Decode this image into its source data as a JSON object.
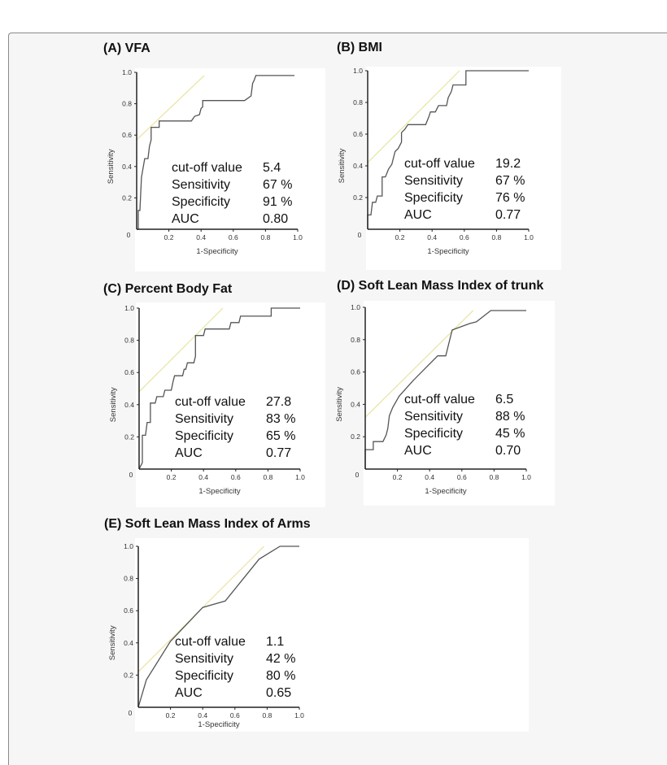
{
  "colors": {
    "roc_line": "#555555",
    "tangent_line": "#e8e4a0",
    "axis": "#222222"
  },
  "chart_data": [
    {
      "type": "line",
      "title": "(A) VFA",
      "xlabel": "1-Specificity",
      "ylabel": "Sensitivity",
      "xlim": [
        0,
        1
      ],
      "ylim": [
        0,
        1
      ],
      "xticks": [
        "0.2",
        "0.4",
        "0.6",
        "0.8",
        "1.0"
      ],
      "yticks": [
        "0.2",
        "0.4",
        "0.6",
        "0.8",
        "1.0"
      ],
      "origin_label": "0",
      "grid": false,
      "roc": {
        "x": [
          0,
          0.01,
          0.01,
          0.02,
          0.03,
          0.05,
          0.07,
          0.08,
          0.09,
          0.09,
          0.14,
          0.14,
          0.34,
          0.36,
          0.39,
          0.4,
          0.41,
          0.41,
          0.67,
          0.71,
          0.72,
          0.73,
          0.74,
          0.98
        ],
        "y": [
          0,
          0,
          0.12,
          0.12,
          0.33,
          0.45,
          0.45,
          0.53,
          0.57,
          0.65,
          0.65,
          0.69,
          0.69,
          0.72,
          0.73,
          0.77,
          0.78,
          0.82,
          0.82,
          0.85,
          0.93,
          0.95,
          0.98,
          0.98
        ]
      },
      "tangent": {
        "x": [
          0,
          0.42
        ],
        "y": [
          0.57,
          0.98
        ]
      },
      "stats": [
        {
          "label": "cut-off value",
          "value": "5.4"
        },
        {
          "label": "Sensitivity",
          "value": "67 %"
        },
        {
          "label": "Specificity",
          "value": "91 %"
        },
        {
          "label": "AUC",
          "value": "0.80"
        }
      ]
    },
    {
      "type": "line",
      "title": "(B) BMI",
      "xlabel": "1-Specificity",
      "ylabel": "Sensitivity",
      "xlim": [
        0,
        1
      ],
      "ylim": [
        0,
        1
      ],
      "xticks": [
        "0.2",
        "0.4",
        "0.6",
        "0.8",
        "1.0"
      ],
      "yticks": [
        "0.2",
        "0.4",
        "0.6",
        "0.8",
        "1.0"
      ],
      "origin_label": "0",
      "grid": false,
      "roc": {
        "x": [
          0,
          0,
          0.02,
          0.03,
          0.05,
          0.06,
          0.09,
          0.09,
          0.11,
          0.13,
          0.15,
          0.17,
          0.19,
          0.21,
          0.21,
          0.23,
          0.25,
          0.36,
          0.38,
          0.39,
          0.42,
          0.44,
          0.49,
          0.5,
          0.52,
          0.53,
          0.61,
          0.61,
          1.0
        ],
        "y": [
          0,
          0.09,
          0.09,
          0.17,
          0.17,
          0.21,
          0.21,
          0.33,
          0.33,
          0.38,
          0.41,
          0.49,
          0.51,
          0.55,
          0.61,
          0.63,
          0.66,
          0.66,
          0.71,
          0.74,
          0.74,
          0.78,
          0.78,
          0.83,
          0.87,
          0.91,
          0.91,
          1.0,
          1.0
        ]
      },
      "tangent": {
        "x": [
          0,
          0.57
        ],
        "y": [
          0.42,
          1.0
        ]
      },
      "stats": [
        {
          "label": "cut-off value",
          "value": "19.2"
        },
        {
          "label": "Sensitivity",
          "value": "67 %"
        },
        {
          "label": "Specificity",
          "value": "76 %"
        },
        {
          "label": "AUC",
          "value": "0.77"
        }
      ]
    },
    {
      "type": "line",
      "title": "(C) Percent Body Fat",
      "xlabel": "1-Specificity",
      "ylabel": "Sensitivity",
      "xlim": [
        0,
        1
      ],
      "ylim": [
        0,
        1
      ],
      "xticks": [
        "0.2",
        "0.4",
        "0.6",
        "0.8",
        "1.0"
      ],
      "yticks": [
        "0.2",
        "0.4",
        "0.6",
        "0.8",
        "1.0"
      ],
      "origin_label": "0",
      "grid": false,
      "roc": {
        "x": [
          0,
          0.02,
          0.02,
          0.04,
          0.05,
          0.07,
          0.07,
          0.1,
          0.11,
          0.15,
          0.16,
          0.2,
          0.21,
          0.22,
          0.27,
          0.28,
          0.29,
          0.3,
          0.34,
          0.35,
          0.35,
          0.4,
          0.41,
          0.56,
          0.57,
          0.62,
          0.63,
          0.82,
          0.82,
          1.0
        ],
        "y": [
          0,
          0.04,
          0.21,
          0.21,
          0.29,
          0.29,
          0.41,
          0.41,
          0.45,
          0.45,
          0.49,
          0.49,
          0.54,
          0.58,
          0.58,
          0.62,
          0.62,
          0.66,
          0.66,
          0.7,
          0.83,
          0.83,
          0.87,
          0.87,
          0.91,
          0.91,
          0.95,
          0.95,
          1.0,
          1.0
        ]
      },
      "tangent": {
        "x": [
          0,
          0.52
        ],
        "y": [
          0.48,
          1.0
        ]
      },
      "stats": [
        {
          "label": "cut-off value",
          "value": "27.8"
        },
        {
          "label": "Sensitivity",
          "value": "83 %"
        },
        {
          "label": "Specificity",
          "value": "65 %"
        },
        {
          "label": "AUC",
          "value": "0.77"
        }
      ]
    },
    {
      "type": "line",
      "title": "(D) Soft Lean Mass Index of trunk",
      "xlabel": "1-Specificity",
      "ylabel": "Sensitivity",
      "xlim": [
        0,
        1
      ],
      "ylim": [
        0,
        1
      ],
      "xticks": [
        "0.2",
        "0.4",
        "0.6",
        "0.8",
        "1.0"
      ],
      "yticks": [
        "0.2",
        "0.4",
        "0.6",
        "0.8",
        "1.0"
      ],
      "origin_label": "0",
      "grid": false,
      "roc": {
        "x": [
          0,
          0,
          0.05,
          0.05,
          0.11,
          0.13,
          0.14,
          0.15,
          0.17,
          0.21,
          0.3,
          0.45,
          0.5,
          0.54,
          0.65,
          0.69,
          0.78,
          1.0
        ],
        "y": [
          0,
          0.12,
          0.12,
          0.17,
          0.17,
          0.21,
          0.25,
          0.33,
          0.38,
          0.45,
          0.55,
          0.7,
          0.7,
          0.86,
          0.9,
          0.91,
          0.98,
          0.98
        ]
      },
      "tangent": {
        "x": [
          0,
          0.67
        ],
        "y": [
          0.32,
          0.98
        ]
      },
      "stats": [
        {
          "label": "cut-off value",
          "value": "6.5"
        },
        {
          "label": "Sensitivity",
          "value": "88 %"
        },
        {
          "label": "Specificity",
          "value": "45 %"
        },
        {
          "label": "AUC",
          "value": "0.70"
        }
      ]
    },
    {
      "type": "line",
      "title": "(E) Soft Lean Mass Index of Arms",
      "xlabel": "1-Specificity",
      "ylabel": "Sensitivity",
      "xlim": [
        0,
        1
      ],
      "ylim": [
        0,
        1
      ],
      "xticks": [
        "0.2",
        "0.4",
        "0.6",
        "0.8",
        "1.0"
      ],
      "yticks": [
        "0.2",
        "0.4",
        "0.6",
        "0.8",
        "1.0"
      ],
      "origin_label": "0",
      "grid": false,
      "roc": {
        "x": [
          0,
          0.05,
          0.2,
          0.4,
          0.54,
          0.75,
          0.88,
          1.0
        ],
        "y": [
          0,
          0.17,
          0.41,
          0.62,
          0.66,
          0.92,
          1.0,
          1.0
        ]
      },
      "tangent": {
        "x": [
          0,
          0.78
        ],
        "y": [
          0.22,
          1.0
        ]
      },
      "stats": [
        {
          "label": "cut-off value",
          "value": "1.1"
        },
        {
          "label": "Sensitivity",
          "value": "42 %"
        },
        {
          "label": "Specificity",
          "value": "80 %"
        },
        {
          "label": "AUC",
          "value": "0.65"
        }
      ]
    }
  ]
}
